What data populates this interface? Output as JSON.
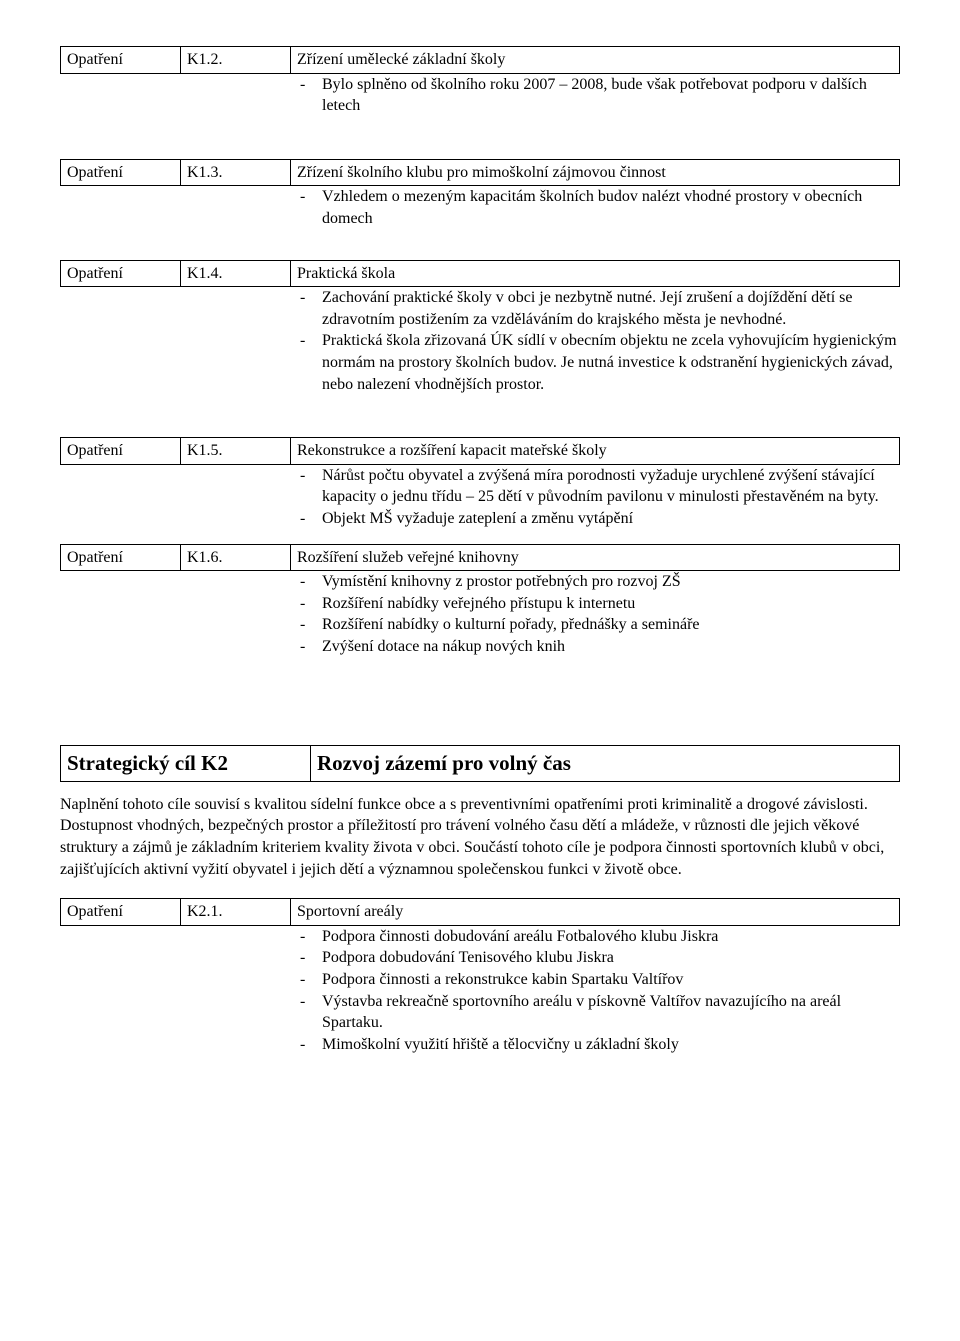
{
  "k1_2": {
    "label": "Opatření",
    "code": "K1.2.",
    "title": "Zřízení umělecké základní školy",
    "bullets": [
      "Bylo splněno od školního roku 2007 – 2008, bude však potřebovat podporu v dalších letech"
    ]
  },
  "k1_3": {
    "label": "Opatření",
    "code": "K1.3.",
    "title": "Zřízení školního klubu pro mimoškolní zájmovou činnost",
    "bullets": [
      "Vzhledem o mezeným kapacitám školních budov nalézt vhodné prostory v obecních domech"
    ]
  },
  "k1_4": {
    "label": "Opatření",
    "code": "K1.4.",
    "title": "Praktická škola",
    "bullets": [
      "Zachování praktické školy v obci je nezbytně nutné. Její zrušení a dojíždění dětí se zdravotním postižením za vzděláváním do krajského města je nevhodné.",
      "Praktická škola zřizovaná ÚK sídlí v obecním objektu ne zcela vyhovujícím hygienickým normám na prostory školních budov. Je nutná investice k odstranění hygienických závad, nebo nalezení vhodnějších prostor."
    ]
  },
  "k1_5": {
    "label": "Opatření",
    "code": "K1.5.",
    "title": "Rekonstrukce a rozšíření kapacit mateřské školy",
    "bullets": [
      "Nárůst počtu obyvatel a zvýšená míra porodnosti vyžaduje urychlené zvýšení stávající kapacity o jednu třídu – 25 dětí v původním pavilonu v minulosti přestavěném na byty.",
      " Objekt MŠ vyžaduje zateplení a změnu vytápění"
    ]
  },
  "k1_6": {
    "label": "Opatření",
    "code": "K1.6.",
    "title": "Rozšíření služeb veřejné knihovny",
    "bullets": [
      "Vymístění knihovny z prostor potřebných pro rozvoj ZŠ",
      "Rozšíření nabídky veřejného přístupu k internetu",
      "Rozšíření nabídky o kulturní pořady, přednášky a semináře",
      "Zvýšení dotace na nákup nových knih"
    ]
  },
  "strategic": {
    "label": "Strategický cíl   K2",
    "title": "Rozvoj zázemí pro volný čas",
    "paragraph": "Naplnění tohoto cíle souvisí s kvalitou sídelní funkce obce a s preventivními opatřeními proti kriminalitě a drogové závislosti. Dostupnost vhodných, bezpečných prostor a příležitostí pro trávení volného času dětí a mládeže, v různosti dle jejich věkové struktury a zájmů je základním kriteriem kvality života v obci. Součástí tohoto cíle je podpora činnosti sportovních klubů v obci, zajišťujících aktivní vyžití obyvatel i jejich dětí a významnou společenskou funkci v životě obce."
  },
  "k2_1": {
    "label": "Opatření",
    "code": "K2.1.",
    "title": "Sportovní areály",
    "bullets": [
      "Podpora činnosti dobudování areálu Fotbalového klubu Jiskra",
      "Podpora dobudování Tenisového klubu Jiskra",
      "Podpora činnosti a rekonstrukce kabin Spartaku Valtířov",
      "Výstavba rekreačně sportovního areálu v pískovně Valtířov navazujícího na areál Spartaku.",
      "Mimoškolní využití hřiště a tělocvičny u základní školy"
    ]
  }
}
